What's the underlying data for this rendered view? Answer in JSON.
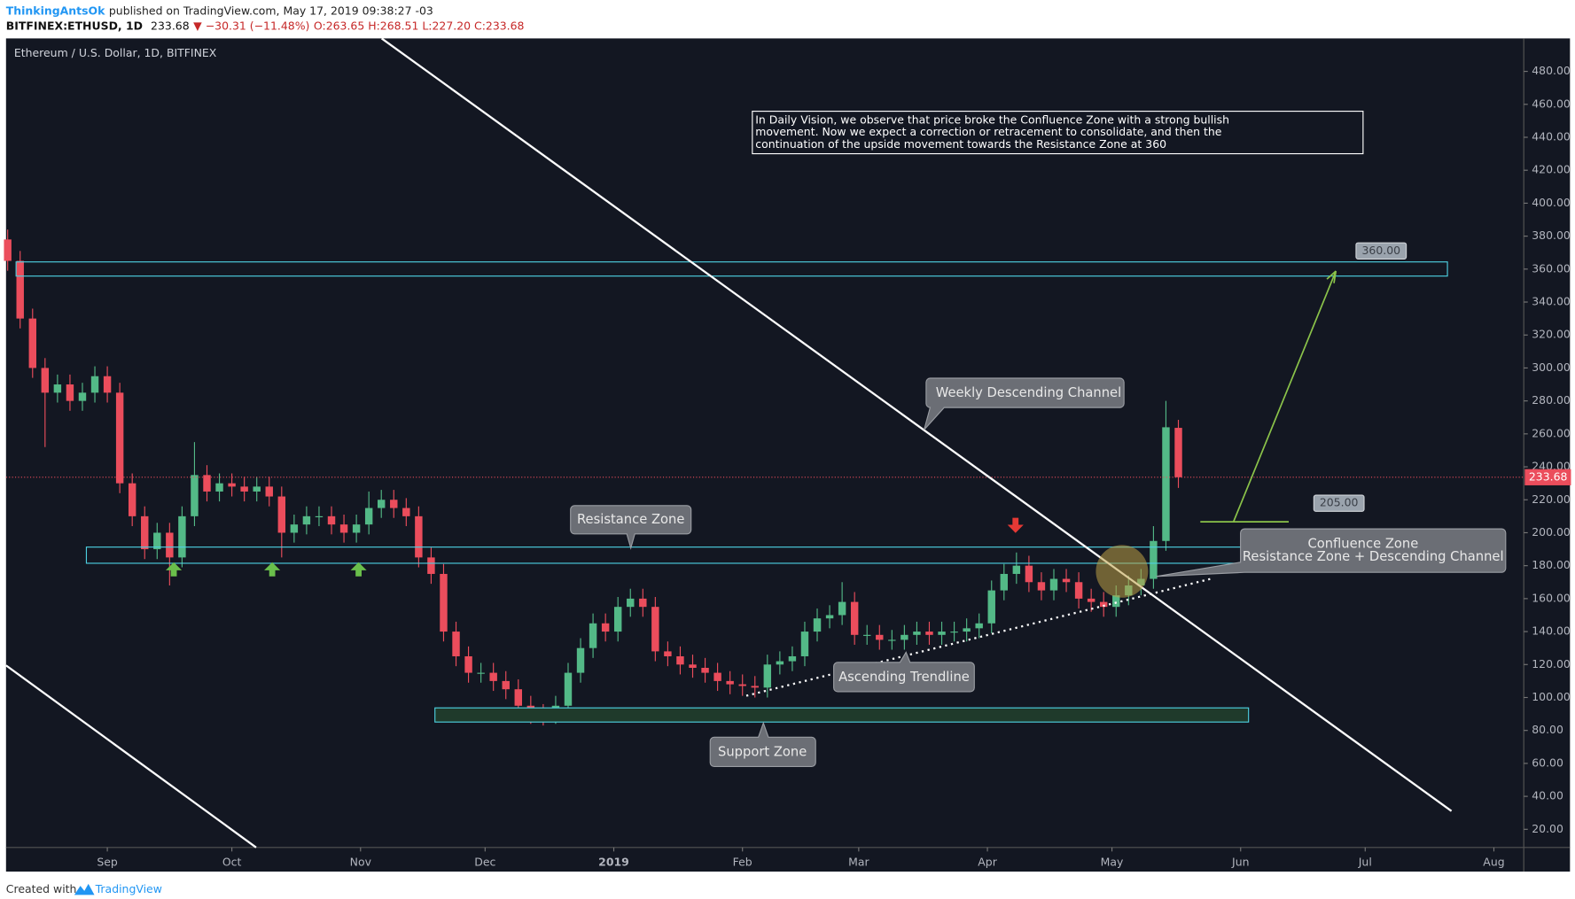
{
  "header": {
    "author": "ThinkingAntsOk",
    "published": "published on TradingView.com, May 17, 2019 09:38:27 -03",
    "symbol": "BITFINEX:ETHUSD, 1D",
    "price": "233.68",
    "change": "▼ −30.31 (−11.48%)",
    "ohlc": "O:263.65 H:268.51 L:227.20 C:233.68"
  },
  "footer": {
    "created": "Created with",
    "brand": "TradingView"
  },
  "chart_data": {
    "type": "candlestick",
    "title": "Ethereum / U.S. Dollar, 1D, BITFINEX",
    "up_color": "#53b987",
    "down_color": "#eb4d5c",
    "grid": false,
    "xlim": [
      -0.4,
      365.2
    ],
    "ylim": [
      9,
      500
    ],
    "xticks": [
      {
        "value": 24,
        "label": "Sep"
      },
      {
        "value": 54,
        "label": "Oct"
      },
      {
        "value": 85,
        "label": "Nov"
      },
      {
        "value": 115,
        "label": "Dec"
      },
      {
        "value": 146,
        "label": "2019"
      },
      {
        "value": 177,
        "label": "Feb"
      },
      {
        "value": 205,
        "label": "Mar"
      },
      {
        "value": 236,
        "label": "Apr"
      },
      {
        "value": 266,
        "label": "May"
      },
      {
        "value": 297,
        "label": "Jun"
      },
      {
        "value": 327,
        "label": "Jul"
      },
      {
        "value": 358,
        "label": "Aug"
      }
    ],
    "yticks": [
      {
        "value": 20,
        "label": "20.00"
      },
      {
        "value": 40,
        "label": "40.00"
      },
      {
        "value": 60,
        "label": "60.00"
      },
      {
        "value": 80,
        "label": "80.00"
      },
      {
        "value": 100,
        "label": "100.00"
      },
      {
        "value": 120,
        "label": "120.00"
      },
      {
        "value": 140,
        "label": "140.00"
      },
      {
        "value": 160,
        "label": "160.00"
      },
      {
        "value": 180,
        "label": "180.00"
      },
      {
        "value": 200,
        "label": "200.00"
      },
      {
        "value": 220,
        "label": "220.00"
      },
      {
        "value": 240,
        "label": "240.00"
      },
      {
        "value": 260,
        "label": "260.00"
      },
      {
        "value": 280,
        "label": "280.00"
      },
      {
        "value": 300,
        "label": "300.00"
      },
      {
        "value": 320,
        "label": "320.00"
      },
      {
        "value": 340,
        "label": "340.00"
      },
      {
        "value": 360,
        "label": "360.00"
      },
      {
        "value": 380,
        "label": "380.00"
      },
      {
        "value": 400,
        "label": "400.00"
      },
      {
        "value": 420,
        "label": "420.00"
      },
      {
        "value": 440,
        "label": "440.00"
      },
      {
        "value": 460,
        "label": "460.00"
      },
      {
        "value": 480,
        "label": "480.00"
      }
    ],
    "x": [
      0,
      3,
      6,
      9,
      12,
      15,
      18,
      21,
      24,
      27,
      30,
      33,
      36,
      39,
      42,
      45,
      48,
      51,
      54,
      57,
      60,
      63,
      66,
      69,
      72,
      75,
      78,
      81,
      84,
      87,
      90,
      93,
      96,
      99,
      102,
      105,
      108,
      111,
      114,
      117,
      120,
      123,
      126,
      129,
      132,
      135,
      138,
      141,
      144,
      147,
      150,
      153,
      156,
      159,
      162,
      165,
      168,
      171,
      174,
      177,
      180,
      183,
      186,
      189,
      192,
      195,
      198,
      201,
      204,
      207,
      210,
      213,
      216,
      219,
      222,
      225,
      228,
      231,
      234,
      237,
      240,
      243,
      246,
      249,
      252,
      255,
      258,
      261,
      264,
      267,
      270,
      273,
      276,
      279,
      282
    ],
    "open": [
      378,
      365,
      330,
      300,
      285,
      290,
      280,
      285,
      295,
      285,
      230,
      210,
      190,
      200,
      185,
      210,
      235,
      225,
      230,
      228,
      225,
      228,
      222,
      200,
      205,
      210,
      210,
      205,
      200,
      205,
      215,
      220,
      215,
      210,
      185,
      175,
      140,
      125,
      115,
      115,
      110,
      105,
      95,
      90,
      87,
      95,
      115,
      130,
      145,
      140,
      155,
      160,
      155,
      128,
      125,
      120,
      118,
      115,
      110,
      108,
      107,
      106,
      120,
      122,
      125,
      140,
      148,
      150,
      158,
      138,
      138,
      135,
      135,
      138,
      140,
      138,
      140,
      140,
      142,
      145,
      165,
      175,
      180,
      170,
      165,
      172,
      170,
      160,
      158,
      155,
      162,
      168,
      172,
      195,
      263.65
    ],
    "high": [
      384,
      371,
      336,
      306,
      296,
      296,
      291,
      301,
      301,
      291,
      236,
      216,
      206,
      206,
      216,
      255,
      241,
      236,
      236,
      234,
      234,
      234,
      228,
      211,
      216,
      216,
      216,
      211,
      211,
      225,
      226,
      226,
      221,
      216,
      191,
      181,
      146,
      131,
      121,
      121,
      116,
      111,
      101,
      96,
      101,
      121,
      136,
      151,
      151,
      161,
      166,
      166,
      161,
      134,
      131,
      126,
      124,
      121,
      116,
      114,
      113,
      126,
      128,
      131,
      146,
      154,
      156,
      170,
      164,
      144,
      144,
      141,
      144,
      146,
      146,
      146,
      146,
      148,
      151,
      171,
      181,
      188,
      186,
      176,
      178,
      178,
      176,
      166,
      164,
      168,
      174,
      178,
      204,
      280,
      268.51
    ],
    "low": [
      359,
      324,
      294,
      252,
      279,
      274,
      274,
      279,
      279,
      224,
      204,
      184,
      184,
      168,
      179,
      204,
      219,
      219,
      222,
      219,
      219,
      216,
      185,
      194,
      199,
      204,
      199,
      194,
      194,
      199,
      209,
      209,
      204,
      179,
      169,
      134,
      119,
      109,
      109,
      104,
      99,
      89,
      84,
      83,
      84,
      89,
      109,
      124,
      134,
      134,
      149,
      149,
      122,
      119,
      114,
      112,
      109,
      104,
      102,
      101,
      100,
      100,
      114,
      116,
      119,
      134,
      142,
      144,
      132,
      132,
      129,
      129,
      129,
      132,
      132,
      132,
      134,
      134,
      136,
      139,
      159,
      169,
      164,
      159,
      159,
      164,
      154,
      152,
      149,
      149,
      156,
      162,
      166,
      189,
      227.2
    ],
    "close": [
      365,
      330,
      300,
      285,
      290,
      280,
      285,
      295,
      285,
      230,
      210,
      190,
      200,
      185,
      210,
      235,
      225,
      230,
      228,
      225,
      228,
      222,
      200,
      205,
      210,
      210,
      205,
      200,
      205,
      215,
      220,
      215,
      210,
      185,
      175,
      140,
      125,
      115,
      115,
      110,
      105,
      95,
      90,
      87,
      95,
      115,
      130,
      145,
      140,
      155,
      160,
      155,
      128,
      125,
      120,
      118,
      115,
      110,
      108,
      107,
      106,
      120,
      122,
      125,
      140,
      148,
      150,
      158,
      138,
      138,
      135,
      135,
      138,
      140,
      138,
      140,
      140,
      142,
      145,
      165,
      175,
      180,
      170,
      165,
      172,
      170,
      160,
      158,
      155,
      162,
      168,
      172,
      195,
      264,
      233.68
    ],
    "last_price": {
      "value": 233.68,
      "label": "233.68"
    },
    "price_labels": [
      {
        "value": 360,
        "label": "360.00"
      },
      {
        "value": 205,
        "label": "205.00"
      }
    ],
    "note": [
      "In Daily Vision, we observe that price broke the Confluence Zone with a strong bullish",
      "movement. Now we expect a correction or retracement to consolidate, and then the",
      "continuation of the upside movement towards the Resistance Zone at 360"
    ],
    "callouts": {
      "channel": "Weekly Descending Channel",
      "resistance": "Resistance Zone",
      "trendline": "Ascending Trendline",
      "support": "Support Zone",
      "confluence": [
        "Confluence Zone",
        "Resistance Zone + Descending Channel"
      ]
    }
  }
}
